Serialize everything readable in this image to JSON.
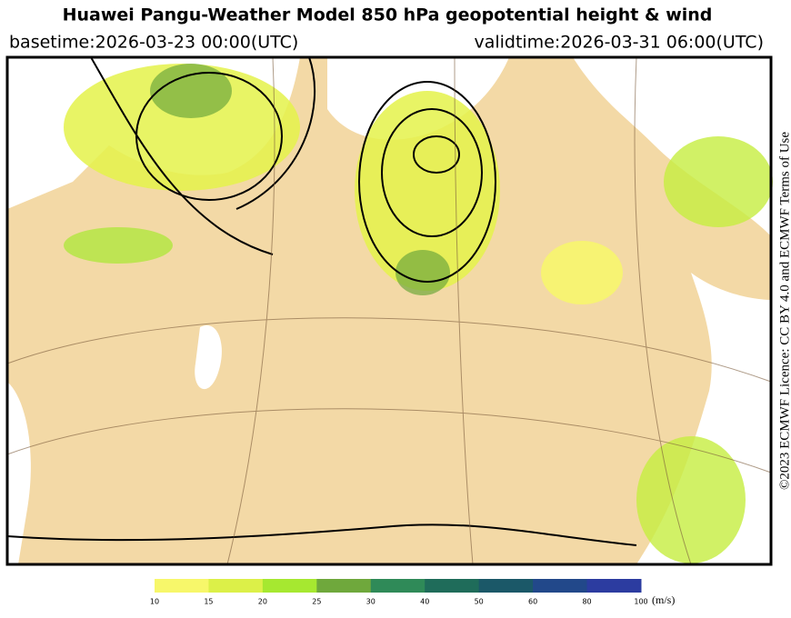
{
  "header": {
    "title": "Huawei Pangu-Weather Model 850 hPa geopotential height & wind",
    "basetime": "basetime:2026-03-23 00:00(UTC)",
    "validtime": "validtime:2026-03-31 06:00(UTC)"
  },
  "credit": "©2023 ECMWF Licence: CC BY 4.0 and ECMWF Terms of Use",
  "colorbar": {
    "ticks": [
      10,
      15,
      20,
      25,
      30,
      40,
      50,
      60,
      80,
      100
    ],
    "colors": [
      "#f7f76a",
      "#dcf048",
      "#a6e830",
      "#6fa83c",
      "#2f8a58",
      "#1f6c5a",
      "#1b5868",
      "#22488a",
      "#2c3ca0"
    ],
    "unit": "(m/s)"
  }
}
